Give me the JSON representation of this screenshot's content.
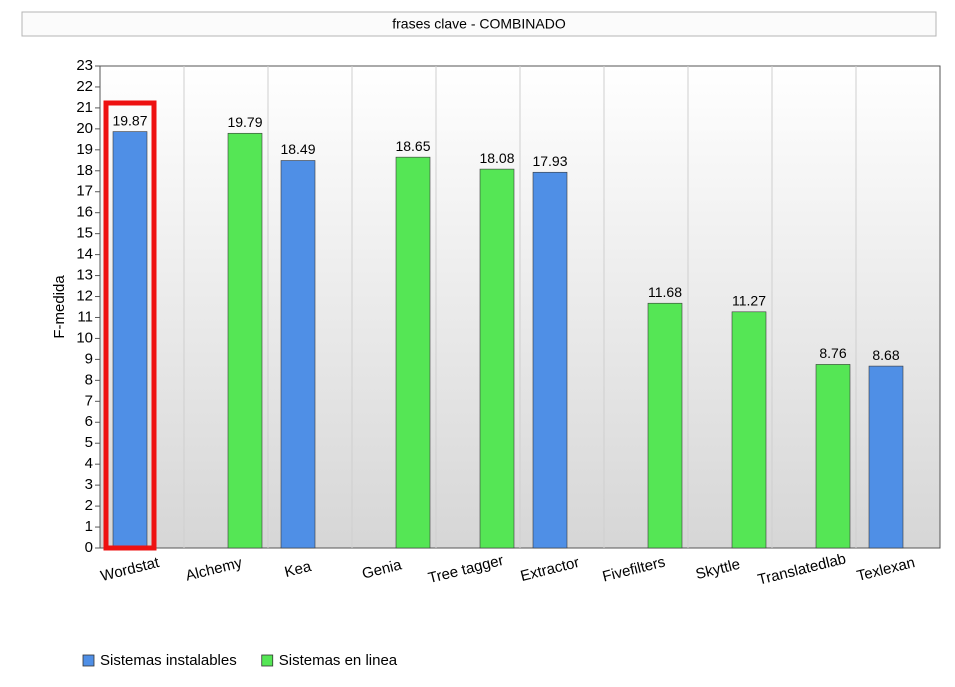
{
  "chart_data": {
    "type": "bar",
    "title": "frases clave - COMBINADO",
    "y_label": "F-medida",
    "categories": [
      "Wordstat",
      "Alchemy",
      "Kea",
      "Genia",
      "Tree tagger",
      "Extractor",
      "Fivefilters",
      "Skyttle",
      "Translatedlab",
      "Texlexan"
    ],
    "series": [
      {
        "name": "Sistemas instalables",
        "color": "#4f8fe6",
        "values": [
          19.87,
          null,
          18.49,
          null,
          null,
          17.93,
          null,
          null,
          null,
          8.68
        ]
      },
      {
        "name": "Sistemas en linea",
        "color": "#55e655",
        "values": [
          null,
          19.79,
          null,
          18.65,
          18.08,
          null,
          11.68,
          11.27,
          8.76,
          null
        ]
      }
    ],
    "ylim": [
      0,
      23
    ],
    "yticks": [
      0,
      1,
      2,
      3,
      4,
      5,
      6,
      7,
      8,
      9,
      10,
      11,
      12,
      13,
      14,
      15,
      16,
      17,
      18,
      19,
      20,
      21,
      22,
      23
    ],
    "grid": true,
    "legend": "bottom"
  }
}
